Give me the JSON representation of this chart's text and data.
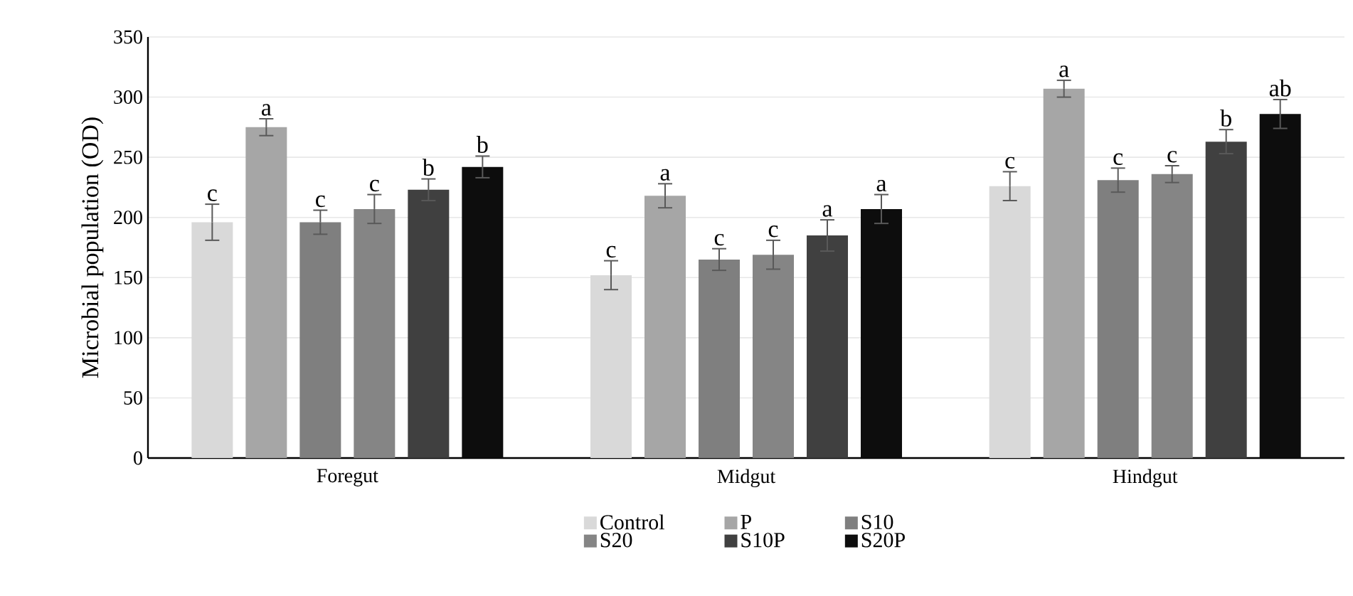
{
  "chart_data": {
    "type": "bar",
    "ylabel": "Microbial population (OD)",
    "categories": [
      "Foregut",
      "Midgut",
      "Hindgut"
    ],
    "series": [
      {
        "name": "Control",
        "color": "#d9d9d9",
        "values": [
          196,
          152,
          226
        ],
        "errors": [
          15,
          12,
          12
        ],
        "value_labels": [
          "c",
          "c",
          "c"
        ]
      },
      {
        "name": "P",
        "color": "#a6a6a6",
        "values": [
          275,
          218,
          307
        ],
        "errors": [
          7,
          10,
          7
        ],
        "value_labels": [
          "a",
          "a",
          "a"
        ]
      },
      {
        "name": "S10",
        "color": "#7f7f7f",
        "values": [
          196,
          165,
          231
        ],
        "errors": [
          10,
          9,
          10
        ],
        "value_labels": [
          "c",
          "c",
          "c"
        ]
      },
      {
        "name": "S20",
        "color": "#858585",
        "values": [
          207,
          169,
          236
        ],
        "errors": [
          12,
          12,
          7
        ],
        "value_labels": [
          "c",
          "c",
          "c"
        ]
      },
      {
        "name": "S10P",
        "color": "#404040",
        "values": [
          223,
          185,
          263
        ],
        "errors": [
          9,
          13,
          10
        ],
        "value_labels": [
          "b",
          "a",
          "b"
        ]
      },
      {
        "name": "S20P",
        "color": "#0d0d0d",
        "values": [
          242,
          207,
          286
        ],
        "errors": [
          9,
          12,
          12
        ],
        "value_labels": [
          "b",
          "a",
          "ab"
        ]
      }
    ],
    "ylim": [
      0,
      350
    ],
    "yticks": [
      0,
      50,
      100,
      150,
      200,
      250,
      300,
      350
    ],
    "grid": "y",
    "legend": "bottom"
  }
}
